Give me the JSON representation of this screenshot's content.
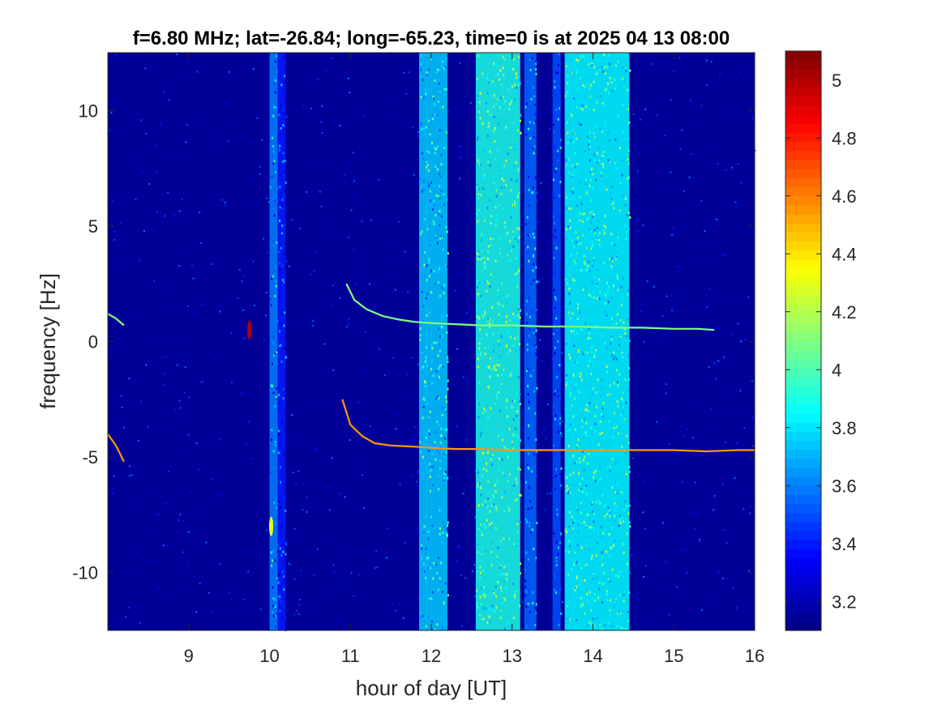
{
  "chart_data": {
    "type": "heatmap",
    "title": "f=6.80 MHz;  lat=-26.84; long=-65.23, time=0 is at 2025 04 13 08:00",
    "xlabel": "hour of day [UT]",
    "ylabel": "frequency [Hz]",
    "xlim": [
      8,
      16
    ],
    "ylim": [
      -12.5,
      12.5
    ],
    "xticks": [
      9,
      10,
      11,
      12,
      13,
      14,
      15,
      16
    ],
    "xtick_labels": [
      "9",
      "10",
      "11",
      "12",
      "13",
      "14",
      "15",
      "16"
    ],
    "yticks": [
      10,
      5,
      0,
      -5,
      -10
    ],
    "ytick_labels": [
      "10",
      "5",
      "0",
      "-5",
      "-10"
    ],
    "colorbar": {
      "colormap": "jet",
      "clim": [
        3.1,
        5.1
      ],
      "ticks": [
        5,
        4.8,
        4.6,
        4.4,
        4.2,
        4,
        3.8,
        3.6,
        3.4,
        3.2
      ],
      "tick_labels": [
        "5",
        "4.8",
        "4.6",
        "4.4",
        "4.2",
        "4",
        "3.8",
        "3.6",
        "3.4",
        "3.2"
      ]
    },
    "background_level": 3.15,
    "broadband_bands": [
      {
        "x_start": 10.0,
        "x_end": 10.1,
        "level": 3.6
      },
      {
        "x_start": 10.1,
        "x_end": 10.2,
        "level": 3.4
      },
      {
        "x_start": 11.85,
        "x_end": 12.2,
        "level": 3.75
      },
      {
        "x_start": 12.55,
        "x_end": 13.1,
        "level": 3.9
      },
      {
        "x_start": 13.15,
        "x_end": 13.3,
        "level": 3.55
      },
      {
        "x_start": 13.5,
        "x_end": 13.6,
        "level": 3.5
      },
      {
        "x_start": 13.65,
        "x_end": 14.45,
        "level": 3.85
      }
    ],
    "series": [
      {
        "x": [
          8.0,
          8.1,
          8.2,
          10.95,
          11.05,
          11.2,
          11.4,
          11.6,
          11.8,
          12.0,
          12.3,
          12.6,
          13.0,
          13.4,
          13.8,
          14.2,
          14.6,
          15.0,
          15.3,
          15.5
        ],
        "y": [
          1.2,
          1.0,
          0.7,
          2.5,
          1.8,
          1.4,
          1.1,
          0.95,
          0.85,
          0.8,
          0.75,
          0.7,
          0.7,
          0.65,
          0.65,
          0.6,
          0.6,
          0.55,
          0.55,
          0.5
        ],
        "level": 4.1
      },
      {
        "x": [
          8.0,
          8.1,
          8.2,
          10.9,
          11.0,
          11.15,
          11.3,
          11.5,
          11.8,
          12.0,
          12.3,
          12.6,
          13.0,
          13.4,
          13.8,
          14.2,
          14.6,
          15.0,
          15.4,
          15.8,
          16.0
        ],
        "y": [
          -4.0,
          -4.5,
          -5.2,
          -2.5,
          -3.6,
          -4.1,
          -4.4,
          -4.5,
          -4.55,
          -4.6,
          -4.65,
          -4.65,
          -4.7,
          -4.7,
          -4.7,
          -4.7,
          -4.7,
          -4.7,
          -4.75,
          -4.7,
          -4.7
        ],
        "level": 4.55
      }
    ],
    "spots": [
      {
        "x": 9.75,
        "y": 0.5,
        "level": 5.0
      },
      {
        "x": 10.02,
        "y": -8.0,
        "level": 4.3
      }
    ]
  }
}
